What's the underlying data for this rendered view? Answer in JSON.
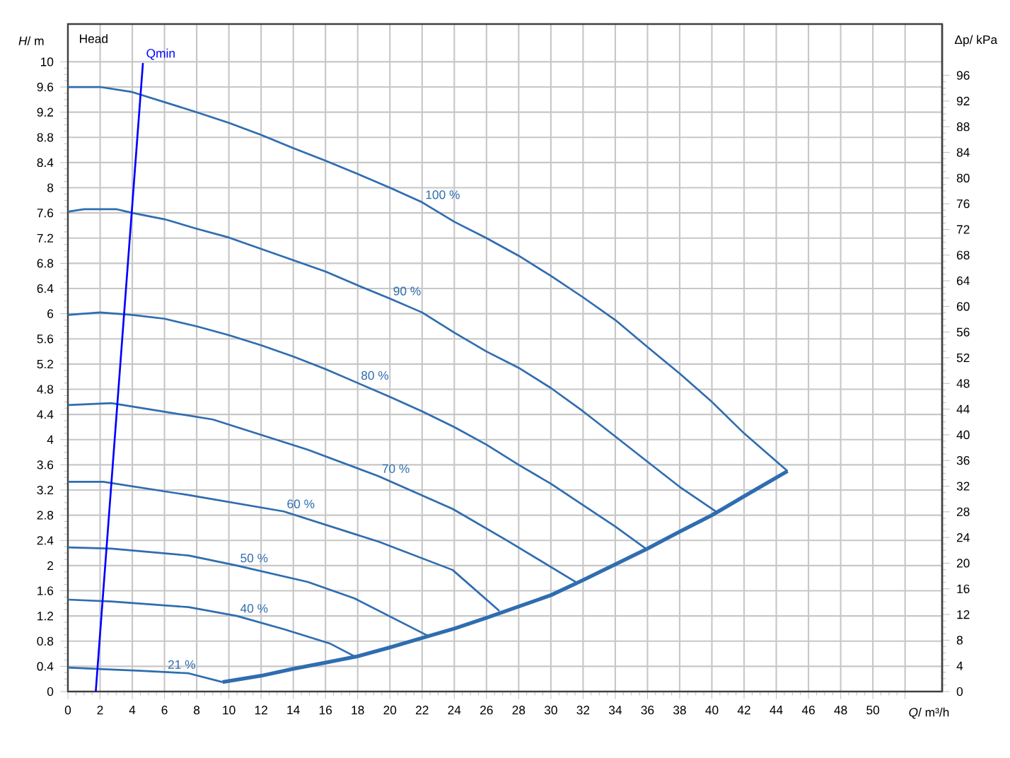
{
  "chart_data": {
    "type": "line",
    "xlabel": "*Q*/ m³/h",
    "ylabel": "*H*/ m",
    "y2label": "Δp/ kPa",
    "annotations": [
      "Head"
    ],
    "xlim": [
      0,
      54.3
    ],
    "ylim": [
      0,
      10.6
    ],
    "y2lim": [
      0,
      104
    ],
    "xticks": [
      0,
      2,
      4,
      6,
      8,
      10,
      12,
      14,
      16,
      18,
      20,
      22,
      24,
      26,
      28,
      30,
      32,
      34,
      36,
      38,
      40,
      42,
      44,
      46,
      48,
      50,
      {
        "value": 52,
        "label": null
      }
    ],
    "yticks": [
      0,
      0.4,
      0.8,
      1.2,
      1.6,
      2,
      2.4,
      2.8,
      3.2,
      3.6,
      4,
      4.4,
      4.8,
      5.2,
      5.6,
      6,
      6.4,
      6.8,
      7.2,
      7.6,
      8,
      8.4,
      8.8,
      9.2,
      9.6,
      10
    ],
    "y2ticks": [
      0,
      4,
      8,
      12,
      16,
      20,
      24,
      28,
      32,
      36,
      40,
      44,
      48,
      52,
      56,
      60,
      64,
      68,
      72,
      76,
      80,
      84,
      88,
      92,
      96
    ],
    "grid": true,
    "legend": false,
    "marker": "none",
    "line_style": "solid",
    "series": [
      {
        "name": "100 %",
        "color": "#2f6db0",
        "x": [
          0,
          2,
          4,
          6,
          8,
          10,
          12,
          14,
          16,
          18,
          20,
          22,
          24,
          26,
          28,
          30,
          32,
          34,
          36,
          38,
          40,
          42,
          44.7
        ],
        "values": [
          9.6,
          9.6,
          9.52,
          9.36,
          9.2,
          9.03,
          8.84,
          8.63,
          8.43,
          8.22,
          8.0,
          7.77,
          7.46,
          7.2,
          6.92,
          6.6,
          6.26,
          5.9,
          5.47,
          5.05,
          4.6,
          4.1,
          3.5
        ]
      },
      {
        "name": "90 %",
        "color": "#2f6db0",
        "x": [
          0,
          1,
          3,
          4,
          6,
          8,
          10,
          12,
          14,
          16,
          18,
          20,
          22,
          24,
          26,
          28,
          30,
          32,
          34,
          36,
          38,
          40.3
        ],
        "values": [
          7.62,
          7.66,
          7.66,
          7.6,
          7.5,
          7.35,
          7.21,
          7.03,
          6.85,
          6.67,
          6.45,
          6.24,
          6.02,
          5.7,
          5.4,
          5.14,
          4.82,
          4.45,
          4.05,
          3.65,
          3.25,
          2.85
        ]
      },
      {
        "name": "80 %",
        "color": "#2f6db0",
        "x": [
          0,
          2,
          4,
          6,
          8,
          10,
          12,
          14,
          16,
          18,
          20,
          22,
          24,
          26,
          28,
          30,
          32,
          34,
          36
        ],
        "values": [
          5.98,
          6.02,
          5.98,
          5.92,
          5.8,
          5.66,
          5.5,
          5.32,
          5.12,
          4.9,
          4.68,
          4.45,
          4.2,
          3.92,
          3.6,
          3.3,
          2.96,
          2.62,
          2.25
        ]
      },
      {
        "name": "70 %",
        "color": "#2f6db0",
        "x": [
          0,
          2.7,
          9,
          14.9,
          19.3,
          23.9,
          27.4,
          31.6
        ],
        "values": [
          4.55,
          4.58,
          4.32,
          3.84,
          3.42,
          2.9,
          2.38,
          1.73
        ]
      },
      {
        "name": "60 %",
        "color": "#2f6db0",
        "x": [
          0,
          2.2,
          7.5,
          13.4,
          19.3,
          23.9,
          26.8
        ],
        "values": [
          3.33,
          3.33,
          3.12,
          2.86,
          2.38,
          1.93,
          1.28
        ]
      },
      {
        "name": "50 %",
        "color": "#2f6db0",
        "x": [
          0,
          2.7,
          7.5,
          10.5,
          14.9,
          17.8,
          22.4
        ],
        "values": [
          2.29,
          2.27,
          2.16,
          2.0,
          1.74,
          1.48,
          0.88
        ]
      },
      {
        "name": "40 %",
        "color": "#2f6db0",
        "x": [
          0,
          2.7,
          7.5,
          10.5,
          13.4,
          16.3,
          17.8
        ],
        "values": [
          1.46,
          1.43,
          1.34,
          1.2,
          0.99,
          0.76,
          0.56
        ]
      },
      {
        "name": "21 %",
        "color": "#2f6db0",
        "x": [
          0,
          2.7,
          4.5,
          6,
          7.5,
          9.6
        ],
        "values": [
          0.38,
          0.35,
          0.33,
          0.31,
          0.29,
          0.15
        ]
      },
      {
        "color": "#2f6db0",
        "x": [
          9.6,
          12,
          14,
          16,
          18,
          20,
          22,
          24,
          26,
          28,
          30,
          32,
          34,
          36,
          38,
          40,
          42,
          44.7
        ],
        "values": [
          0.15,
          0.25,
          0.36,
          0.46,
          0.56,
          0.7,
          0.85,
          1.0,
          1.17,
          1.35,
          1.53,
          1.77,
          2.02,
          2.27,
          2.54,
          2.8,
          3.1,
          3.5
        ]
      },
      {
        "name": "Qmin",
        "color": "#0000ff",
        "x": [
          1.73,
          4.66
        ],
        "values": [
          0,
          9.98
        ]
      }
    ]
  }
}
